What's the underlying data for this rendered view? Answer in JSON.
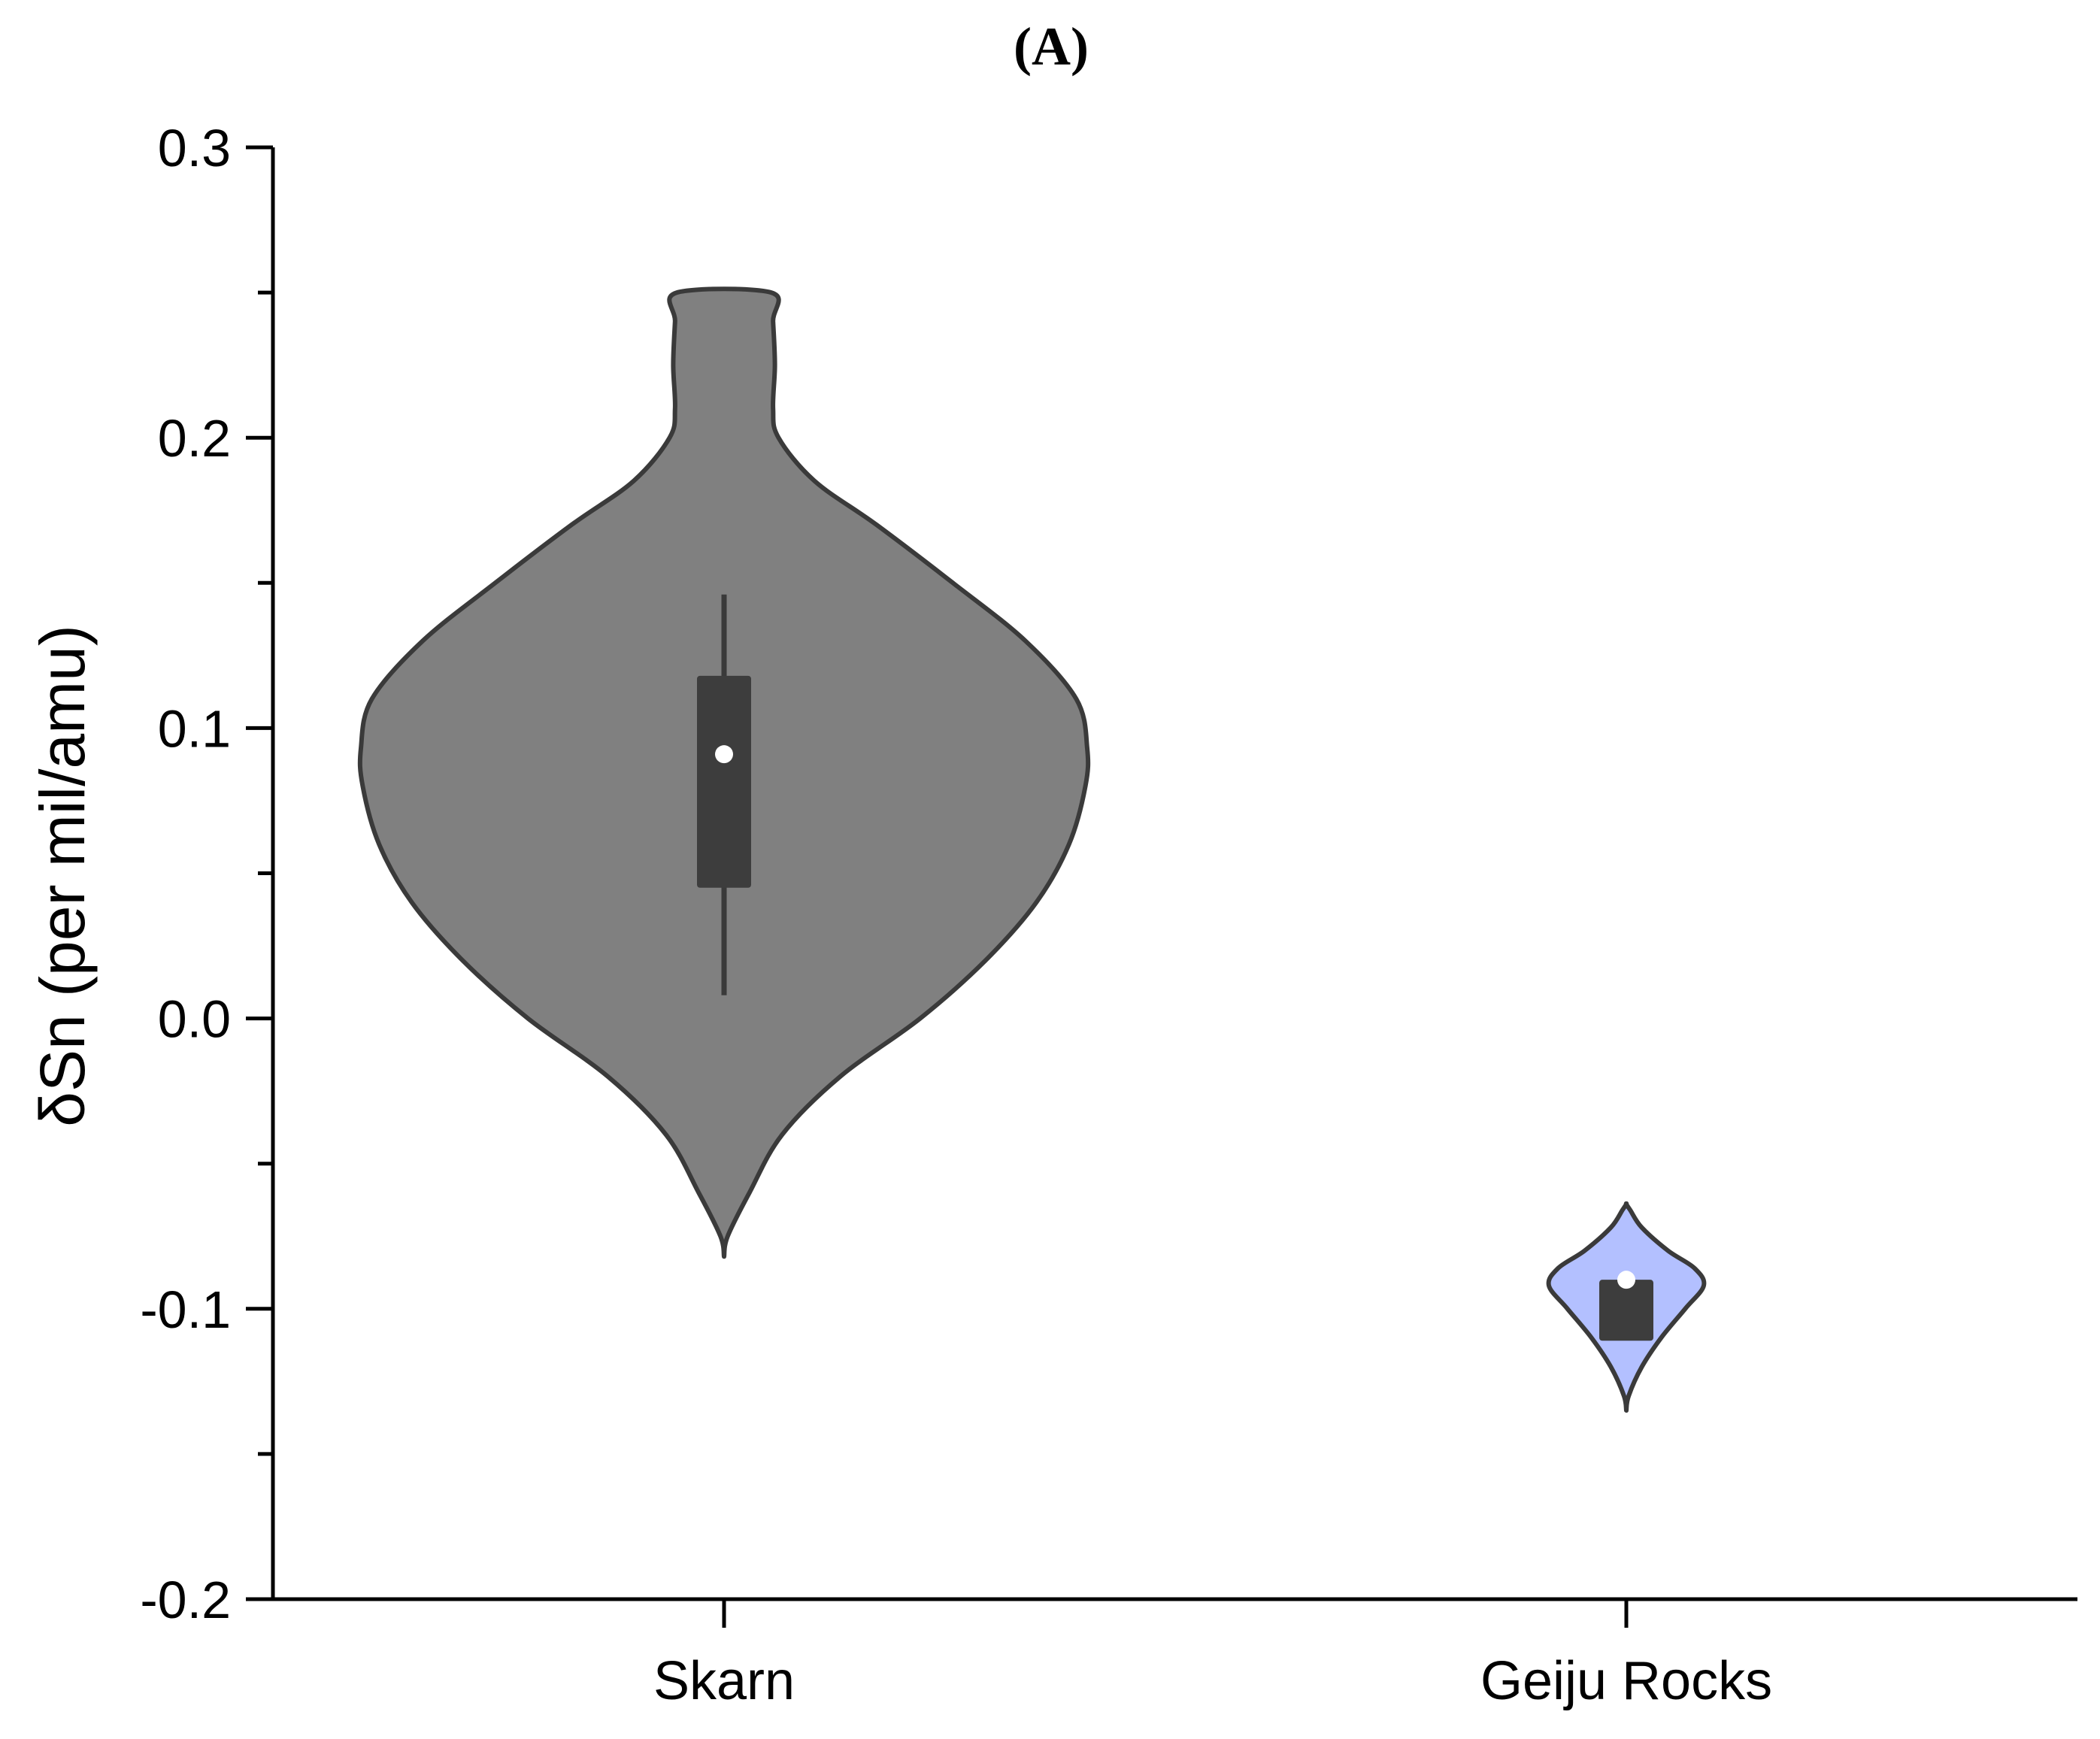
{
  "chart_data": {
    "type": "violin",
    "title": "(A)",
    "ylabel": "δSn (per mil/amu)",
    "xlabel": "",
    "ylim": [
      -0.2,
      0.3
    ],
    "yticks_major": [
      -0.2,
      -0.1,
      0.0,
      0.1,
      0.2,
      0.3
    ],
    "ytick_labels": [
      "-0.2",
      "-0.1",
      "0.0",
      "0.1",
      "0.2",
      "0.3"
    ],
    "yticks_minor": [
      -0.15,
      -0.05,
      0.05,
      0.15,
      0.25
    ],
    "categories": [
      "Skarn",
      "Geiju Rocks"
    ],
    "grid": false,
    "series": [
      {
        "category": "Skarn",
        "fill_color": "#808080",
        "outline_color": "#3a3a3a",
        "range": [
          -0.082,
          0.25
        ],
        "box": {
          "q1": 0.045,
          "q3": 0.118,
          "whisker_low": 0.008,
          "whisker_high": 0.146
        },
        "median": 0.091,
        "density_profile": [
          [
            -0.082,
            0.0
          ],
          [
            -0.075,
            0.01
          ],
          [
            -0.06,
            0.07
          ],
          [
            -0.04,
            0.16
          ],
          [
            -0.02,
            0.32
          ],
          [
            0.0,
            0.54
          ],
          [
            0.02,
            0.72
          ],
          [
            0.04,
            0.86
          ],
          [
            0.06,
            0.95
          ],
          [
            0.08,
            0.995
          ],
          [
            0.093,
            1.0
          ],
          [
            0.11,
            0.97
          ],
          [
            0.13,
            0.83
          ],
          [
            0.15,
            0.63
          ],
          [
            0.17,
            0.42
          ],
          [
            0.185,
            0.25
          ],
          [
            0.2,
            0.15
          ],
          [
            0.21,
            0.135
          ],
          [
            0.225,
            0.14
          ],
          [
            0.24,
            0.135
          ],
          [
            0.25,
            0.13
          ]
        ]
      },
      {
        "category": "Geiju Rocks",
        "fill_color": "#b3c0ff",
        "outline_color": "#3a3a3a",
        "range": [
          -0.135,
          -0.064
        ],
        "box": {
          "q1": -0.111,
          "q3": -0.09,
          "whisker_low": -0.111,
          "whisker_high": -0.09
        },
        "median": -0.09,
        "density_profile": [
          [
            -0.135,
            0.0
          ],
          [
            -0.13,
            0.03
          ],
          [
            -0.12,
            0.2
          ],
          [
            -0.11,
            0.45
          ],
          [
            -0.1,
            0.76
          ],
          [
            -0.092,
            1.0
          ],
          [
            -0.086,
            0.88
          ],
          [
            -0.08,
            0.54
          ],
          [
            -0.072,
            0.2
          ],
          [
            -0.066,
            0.05
          ],
          [
            -0.064,
            0.0
          ]
        ]
      }
    ]
  }
}
